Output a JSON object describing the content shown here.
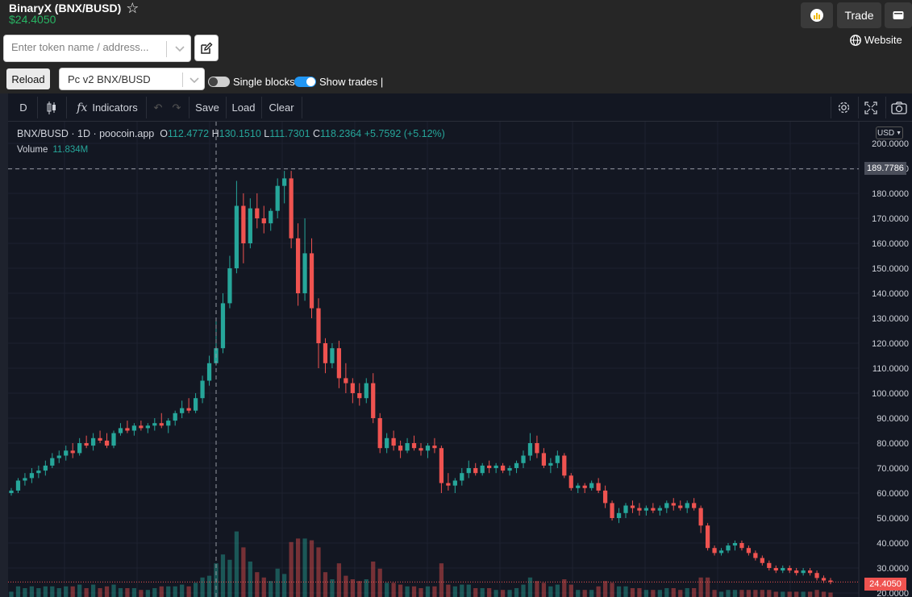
{
  "token": {
    "title": "BinaryX (BNX/BUSD)",
    "price": "$24.4050",
    "search_placeholder": "Enter token name / address...",
    "reload_label": "Reload",
    "pair_value": "Pc v2 BNX/BUSD",
    "single_blocks_label": "Single blocks",
    "single_blocks_on": false,
    "show_trades_label": "Show trades |",
    "show_trades_on": true
  },
  "header_right": {
    "trade_label": "Trade",
    "website_label": "Website"
  },
  "toolbar": {
    "interval": "D",
    "indicators_label": "Indicators",
    "save_label": "Save",
    "load_label": "Load",
    "clear_label": "Clear"
  },
  "legend": {
    "symbol": "BNX/BUSD",
    "interval": "1D",
    "source": "poocoin.app",
    "o_label": "O",
    "o": "112.4772",
    "h_label": "H",
    "h": "130.1510",
    "l_label": "L",
    "l": "111.7301",
    "c_label": "C",
    "c": "118.2364",
    "change": "+5.7592 (+5.12%)",
    "volume_label": "Volume",
    "volume": "11.834M"
  },
  "price_axis": {
    "currency": "USD",
    "ticks": [
      "200.0000",
      "190.0000",
      "180.0000",
      "170.0000",
      "160.0000",
      "150.0000",
      "140.0000",
      "130.0000",
      "120.0000",
      "110.0000",
      "100.0000",
      "90.0000",
      "80.0000",
      "70.0000",
      "60.0000",
      "50.0000",
      "40.0000",
      "30.0000",
      "20.0000"
    ],
    "crosshair_label": "189.7786",
    "last_price_label": "24.4050"
  },
  "colors": {
    "up": "#26a69a",
    "down": "#ef5350",
    "background": "#131722",
    "grid": "#1e2230",
    "last_price": "#ef5350",
    "accent_price": "#28b463"
  },
  "chart_data": {
    "type": "candlestick",
    "ylim": [
      20,
      200
    ],
    "crosshair_price": 189.7786,
    "last_price": 24.405,
    "candles": [
      [
        60,
        62,
        59,
        61
      ],
      [
        61,
        66,
        60,
        65
      ],
      [
        65,
        68,
        63,
        66
      ],
      [
        66,
        70,
        64,
        68
      ],
      [
        68,
        71,
        66,
        69
      ],
      [
        69,
        73,
        67,
        71
      ],
      [
        71,
        76,
        70,
        74
      ],
      [
        74,
        77,
        72,
        75
      ],
      [
        75,
        79,
        73,
        77
      ],
      [
        77,
        80,
        74,
        76
      ],
      [
        76,
        82,
        75,
        80
      ],
      [
        80,
        83,
        78,
        79
      ],
      [
        79,
        84,
        77,
        82
      ],
      [
        82,
        85,
        80,
        81
      ],
      [
        81,
        84,
        78,
        79
      ],
      [
        79,
        85,
        78,
        84
      ],
      [
        84,
        88,
        83,
        86
      ],
      [
        86,
        89,
        84,
        85
      ],
      [
        85,
        88,
        83,
        87
      ],
      [
        87,
        89,
        85,
        86
      ],
      [
        86,
        88,
        84,
        87
      ],
      [
        87,
        90,
        85,
        88
      ],
      [
        88,
        92,
        86,
        87
      ],
      [
        87,
        90,
        84,
        89
      ],
      [
        89,
        93,
        87,
        92
      ],
      [
        92,
        97,
        90,
        94
      ],
      [
        94,
        98,
        92,
        93
      ],
      [
        93,
        100,
        92,
        98
      ],
      [
        98,
        107,
        96,
        105
      ],
      [
        105,
        115,
        103,
        112
      ],
      [
        112,
        130,
        111,
        118
      ],
      [
        118,
        140,
        116,
        136
      ],
      [
        136,
        155,
        134,
        150
      ],
      [
        150,
        185,
        148,
        175
      ],
      [
        175,
        180,
        152,
        160
      ],
      [
        160,
        178,
        158,
        174
      ],
      [
        174,
        180,
        166,
        170
      ],
      [
        170,
        175,
        164,
        168
      ],
      [
        168,
        174,
        165,
        173
      ],
      [
        173,
        186,
        170,
        183
      ],
      [
        183,
        189,
        176,
        186
      ],
      [
        186,
        189,
        158,
        162
      ],
      [
        162,
        168,
        135,
        140
      ],
      [
        140,
        170,
        137,
        156
      ],
      [
        156,
        162,
        130,
        134
      ],
      [
        134,
        138,
        110,
        120
      ],
      [
        120,
        122,
        108,
        112
      ],
      [
        112,
        120,
        110,
        118
      ],
      [
        118,
        121,
        102,
        106
      ],
      [
        106,
        112,
        100,
        104
      ],
      [
        104,
        106,
        96,
        100
      ],
      [
        100,
        104,
        95,
        98
      ],
      [
        98,
        106,
        96,
        104
      ],
      [
        104,
        108,
        88,
        90
      ],
      [
        90,
        92,
        76,
        78
      ],
      [
        78,
        84,
        76,
        82
      ],
      [
        82,
        85,
        77,
        79
      ],
      [
        79,
        81,
        74,
        77
      ],
      [
        77,
        82,
        76,
        80
      ],
      [
        80,
        83,
        77,
        78
      ],
      [
        78,
        80,
        75,
        77
      ],
      [
        77,
        80,
        74,
        79
      ],
      [
        79,
        82,
        76,
        78
      ],
      [
        78,
        79,
        60,
        64
      ],
      [
        64,
        68,
        61,
        63
      ],
      [
        63,
        66,
        60,
        65
      ],
      [
        65,
        70,
        63,
        68
      ],
      [
        68,
        73,
        66,
        70
      ],
      [
        70,
        72,
        67,
        68
      ],
      [
        68,
        72,
        67,
        71
      ],
      [
        71,
        73,
        68,
        70
      ],
      [
        70,
        72,
        68,
        71
      ],
      [
        71,
        72,
        68,
        69
      ],
      [
        69,
        71,
        67,
        70
      ],
      [
        70,
        73,
        68,
        72
      ],
      [
        72,
        77,
        70,
        75
      ],
      [
        75,
        84,
        73,
        80
      ],
      [
        80,
        83,
        74,
        76
      ],
      [
        76,
        78,
        70,
        71
      ],
      [
        71,
        74,
        68,
        72
      ],
      [
        72,
        77,
        70,
        75
      ],
      [
        75,
        76,
        66,
        67
      ],
      [
        67,
        68,
        61,
        62
      ],
      [
        62,
        64,
        60,
        63
      ],
      [
        63,
        64,
        60,
        62
      ],
      [
        62,
        65,
        61,
        64
      ],
      [
        64,
        66,
        60,
        61
      ],
      [
        61,
        63,
        54,
        56
      ],
      [
        56,
        57,
        49,
        50
      ],
      [
        50,
        54,
        48,
        52
      ],
      [
        52,
        56,
        50,
        55
      ],
      [
        55,
        57,
        52,
        54
      ],
      [
        54,
        56,
        51,
        53
      ],
      [
        53,
        55,
        51,
        54
      ],
      [
        54,
        56,
        52,
        53
      ],
      [
        53,
        55,
        51,
        54
      ],
      [
        54,
        57,
        52,
        56
      ],
      [
        56,
        58,
        53,
        55
      ],
      [
        55,
        57,
        53,
        54
      ],
      [
        54,
        57,
        52,
        56
      ],
      [
        56,
        58,
        53,
        54
      ],
      [
        54,
        55,
        44,
        47
      ],
      [
        47,
        48,
        37,
        38
      ],
      [
        38,
        39,
        35,
        36
      ],
      [
        36,
        38,
        35,
        37
      ],
      [
        37,
        40,
        36,
        39
      ],
      [
        39,
        41,
        37,
        40
      ],
      [
        40,
        41,
        37,
        38
      ],
      [
        38,
        39,
        35,
        36
      ],
      [
        36,
        37,
        33,
        34
      ],
      [
        34,
        35,
        31,
        32
      ],
      [
        32,
        33,
        29,
        30
      ],
      [
        30,
        31,
        28,
        29
      ],
      [
        29,
        31,
        28,
        30
      ],
      [
        30,
        31,
        28,
        29
      ],
      [
        29,
        30,
        27,
        28
      ],
      [
        28,
        30,
        27,
        29
      ],
      [
        29,
        30,
        27,
        28
      ],
      [
        28,
        29,
        25,
        26
      ],
      [
        26,
        27,
        24,
        25
      ],
      [
        25,
        26,
        23.5,
        24.4
      ]
    ],
    "volume_peaks_note": ""
  }
}
